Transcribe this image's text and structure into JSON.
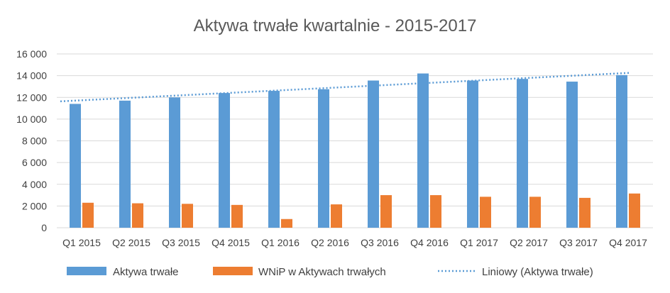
{
  "chart_data": {
    "type": "bar",
    "title": "Aktywa trwałe kwartalnie - 2015-2017",
    "categories": [
      "Q1 2015",
      "Q2 2015",
      "Q3 2015",
      "Q4 2015",
      "Q1 2016",
      "Q2 2016",
      "Q3 2016",
      "Q4 2016",
      "Q1 2017",
      "Q2 2017",
      "Q3 2017",
      "Q4 2017"
    ],
    "series": [
      {
        "name": "Aktywa trwałe",
        "color": "#5B9BD5",
        "values": [
          11400,
          11700,
          12000,
          12400,
          12600,
          12750,
          13550,
          14200,
          13550,
          13700,
          13450,
          14050
        ]
      },
      {
        "name": "WNiP w Aktywach trwałych",
        "color": "#ED7D31",
        "values": [
          2300,
          2250,
          2200,
          2100,
          800,
          2150,
          3000,
          3000,
          2850,
          2850,
          2750,
          3150
        ]
      }
    ],
    "trendline": {
      "name": "Liniowy (Aktywa trwałe)",
      "color": "#5B9BD5",
      "of_series": "Aktywa trwałe"
    },
    "ylim": [
      0,
      16000
    ],
    "yticks": [
      0,
      2000,
      4000,
      6000,
      8000,
      10000,
      12000,
      14000,
      16000
    ],
    "ytick_labels": [
      "0",
      "2 000",
      "4 000",
      "6 000",
      "8 000",
      "10 000",
      "12 000",
      "14 000",
      "16 000"
    ],
    "grid": true,
    "legend_position": "bottom"
  }
}
